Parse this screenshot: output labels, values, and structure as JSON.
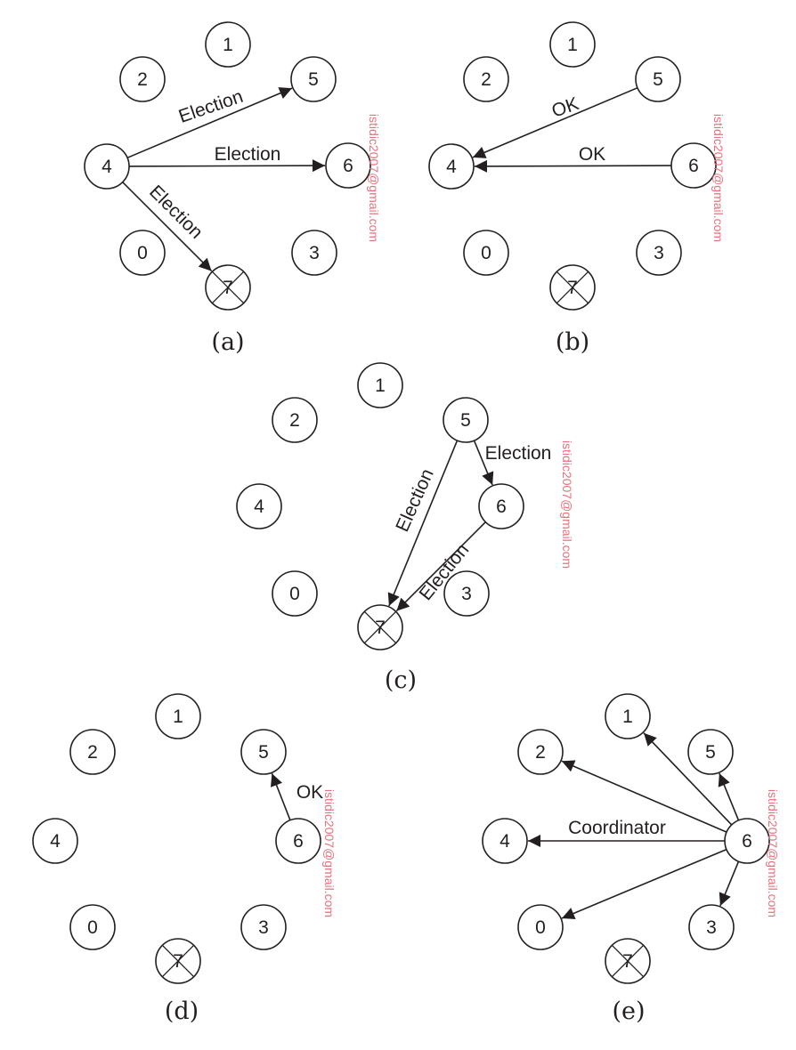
{
  "watermark": "istidic2007@gmail.com",
  "colors": {
    "ink": "#231f20",
    "watermark": "#e8707c",
    "background": "#ffffff"
  },
  "panels": [
    {
      "caption": "(a)",
      "nodes": [
        {
          "id": "1",
          "label": "1",
          "crossed": false
        },
        {
          "id": "2",
          "label": "2",
          "crossed": false
        },
        {
          "id": "5",
          "label": "5",
          "crossed": false
        },
        {
          "id": "4",
          "label": "4",
          "crossed": false
        },
        {
          "id": "6",
          "label": "6",
          "crossed": false
        },
        {
          "id": "0",
          "label": "0",
          "crossed": false
        },
        {
          "id": "3",
          "label": "3",
          "crossed": false
        },
        {
          "id": "7",
          "label": "7",
          "crossed": true
        }
      ],
      "messages": [
        {
          "from": "4",
          "to": "5",
          "label": "Election"
        },
        {
          "from": "4",
          "to": "6",
          "label": "Election"
        },
        {
          "from": "4",
          "to": "7",
          "label": "Election"
        }
      ]
    },
    {
      "caption": "(b)",
      "nodes": [
        {
          "id": "1",
          "label": "1",
          "crossed": false
        },
        {
          "id": "2",
          "label": "2",
          "crossed": false
        },
        {
          "id": "5",
          "label": "5",
          "crossed": false
        },
        {
          "id": "4",
          "label": "4",
          "crossed": false
        },
        {
          "id": "6",
          "label": "6",
          "crossed": false
        },
        {
          "id": "0",
          "label": "0",
          "crossed": false
        },
        {
          "id": "3",
          "label": "3",
          "crossed": false
        },
        {
          "id": "7",
          "label": "7",
          "crossed": true
        }
      ],
      "messages": [
        {
          "from": "5",
          "to": "4",
          "label": "OK"
        },
        {
          "from": "6",
          "to": "4",
          "label": "OK"
        }
      ]
    },
    {
      "caption": "(c)",
      "nodes": [
        {
          "id": "1",
          "label": "1",
          "crossed": false
        },
        {
          "id": "2",
          "label": "2",
          "crossed": false
        },
        {
          "id": "5",
          "label": "5",
          "crossed": false
        },
        {
          "id": "4",
          "label": "4",
          "crossed": false
        },
        {
          "id": "6",
          "label": "6",
          "crossed": false
        },
        {
          "id": "0",
          "label": "0",
          "crossed": false
        },
        {
          "id": "3",
          "label": "3",
          "crossed": false
        },
        {
          "id": "7",
          "label": "7",
          "crossed": true
        }
      ],
      "messages": [
        {
          "from": "5",
          "to": "6",
          "label": "Election"
        },
        {
          "from": "5",
          "to": "7",
          "label": "Election"
        },
        {
          "from": "6",
          "to": "7",
          "label": "Election"
        }
      ]
    },
    {
      "caption": "(d)",
      "nodes": [
        {
          "id": "1",
          "label": "1",
          "crossed": false
        },
        {
          "id": "2",
          "label": "2",
          "crossed": false
        },
        {
          "id": "5",
          "label": "5",
          "crossed": false
        },
        {
          "id": "4",
          "label": "4",
          "crossed": false
        },
        {
          "id": "6",
          "label": "6",
          "crossed": false
        },
        {
          "id": "0",
          "label": "0",
          "crossed": false
        },
        {
          "id": "3",
          "label": "3",
          "crossed": false
        },
        {
          "id": "7",
          "label": "7",
          "crossed": true
        }
      ],
      "messages": [
        {
          "from": "6",
          "to": "5",
          "label": "OK"
        }
      ]
    },
    {
      "caption": "(e)",
      "nodes": [
        {
          "id": "1",
          "label": "1",
          "crossed": false
        },
        {
          "id": "2",
          "label": "2",
          "crossed": false
        },
        {
          "id": "5",
          "label": "5",
          "crossed": false
        },
        {
          "id": "4",
          "label": "4",
          "crossed": false
        },
        {
          "id": "6",
          "label": "6",
          "crossed": false
        },
        {
          "id": "0",
          "label": "0",
          "crossed": false
        },
        {
          "id": "3",
          "label": "3",
          "crossed": false
        },
        {
          "id": "7",
          "label": "7",
          "crossed": true
        }
      ],
      "messages": [
        {
          "from": "6",
          "to": "1",
          "label": ""
        },
        {
          "from": "6",
          "to": "2",
          "label": ""
        },
        {
          "from": "6",
          "to": "5",
          "label": ""
        },
        {
          "from": "6",
          "to": "4",
          "label": "Coordinator"
        },
        {
          "from": "6",
          "to": "0",
          "label": ""
        },
        {
          "from": "6",
          "to": "3",
          "label": ""
        }
      ]
    }
  ]
}
